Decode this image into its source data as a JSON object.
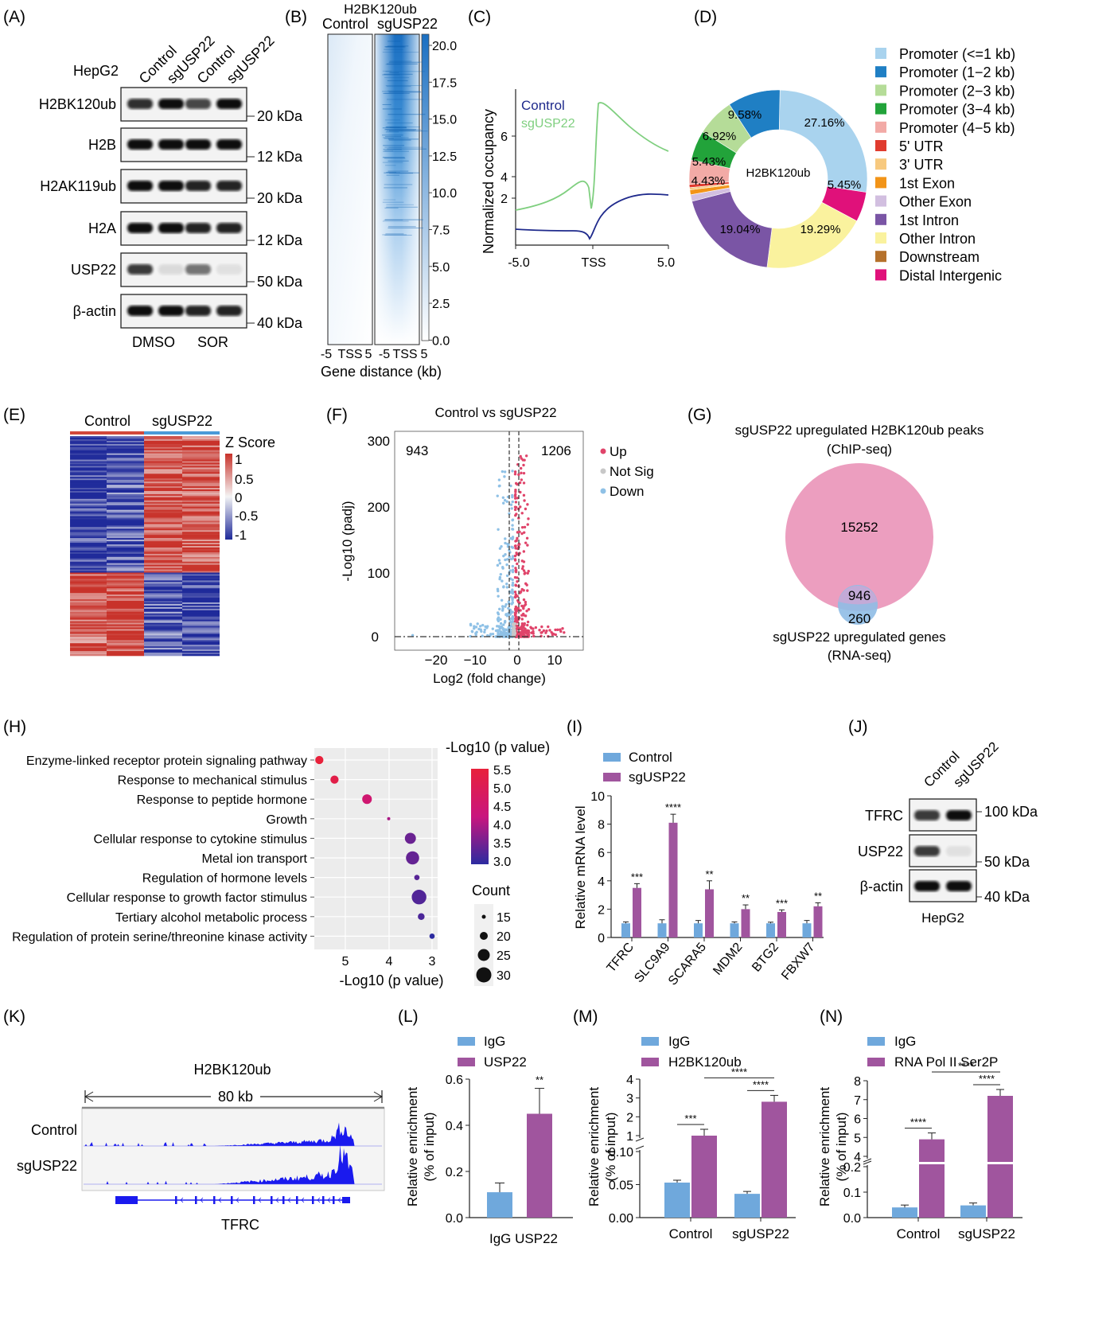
{
  "panels": {
    "A": {
      "label": "(A)",
      "cell_line": "HepG2",
      "lanes": [
        "Control",
        "sgUSP22",
        "Control",
        "sgUSP22"
      ],
      "rows": [
        {
          "name": "H2BK120ub",
          "kda": "20 kDa"
        },
        {
          "name": "H2B",
          "kda": "12 kDa"
        },
        {
          "name": "H2AK119ub",
          "kda": "20 kDa"
        },
        {
          "name": "H2A",
          "kda": "12 kDa"
        },
        {
          "name": "USP22",
          "kda": "50 kDa"
        },
        {
          "name": "β-actin",
          "kda": "40 kDa"
        }
      ],
      "treatments": [
        "DMSO",
        "SOR"
      ]
    },
    "B": {
      "label": "(B)",
      "title": "H2BK120ub",
      "groups": [
        "Control",
        "sgUSP22"
      ],
      "scale_ticks": [
        "20.0",
        "17.5",
        "15.0",
        "12.5",
        "10.0",
        "7.5",
        "5.0",
        "2.5",
        "0.0"
      ],
      "xticks": [
        "-5",
        "TSS",
        "5",
        "-5",
        "TSS",
        "5"
      ],
      "xlabel": "Gene distance (kb)",
      "color": "#1a6fc2"
    },
    "C": {
      "label": "(C)",
      "ylabel": "Normalized occupancy",
      "yticks": [
        "2",
        "4",
        "6"
      ],
      "xticks": [
        "-5.0",
        "TSS",
        "5.0"
      ],
      "legend": [
        {
          "name": "Control",
          "color": "#1f2a8c"
        },
        {
          "name": "sgUSP22",
          "color": "#7fcf7f"
        }
      ]
    },
    "D": {
      "label": "(D)",
      "center": "H2BK120ub",
      "legend": [
        {
          "name": "Promoter (<=1 kb)",
          "color": "#a9d3ee"
        },
        {
          "name": "Promoter (1−2 kb)",
          "color": "#1f7fc4"
        },
        {
          "name": "Promoter (2−3 kb)",
          "color": "#b5dc98"
        },
        {
          "name": "Promoter (3−4 kb)",
          "color": "#22a33a"
        },
        {
          "name": "Promoter (4−5 kb)",
          "color": "#f2aaa6"
        },
        {
          "name": "5' UTR",
          "color": "#e03b2f"
        },
        {
          "name": "3' UTR",
          "color": "#f7c97f"
        },
        {
          "name": "1st Exon",
          "color": "#f29418"
        },
        {
          "name": "Other Exon",
          "color": "#d2bfe0"
        },
        {
          "name": "1st Intron",
          "color": "#7a55a5"
        },
        {
          "name": "Other Intron",
          "color": "#faf29e"
        },
        {
          "name": "Downstream",
          "color": "#b5712b"
        },
        {
          "name": "Distal Intergenic",
          "color": "#e0117a"
        }
      ]
    },
    "E": {
      "label": "(E)",
      "groups": [
        "Control",
        "sgUSP22"
      ],
      "legend_title": "Z Score",
      "legend_ticks": [
        "1",
        "0.5",
        "0",
        "-0.5",
        "-1"
      ]
    },
    "F": {
      "label": "(F)",
      "title": "Control vs sgUSP22",
      "down_count": "943",
      "up_count": "1206",
      "legend": [
        {
          "name": "Up",
          "color": "#e0446a"
        },
        {
          "name": "Not Sig",
          "color": "#c8c8c8"
        },
        {
          "name": "Down",
          "color": "#8fc1e6"
        }
      ],
      "ylabel": "-Log10 (padj)",
      "xlabel": "Log2 (fold change)",
      "yticks": [
        "0",
        "100",
        "200",
        "300"
      ],
      "xticks": [
        "−20",
        "−10",
        "0",
        "10"
      ]
    },
    "G": {
      "label": "(G)",
      "title1": "sgUSP22 upregulated H2BK120ub peaks",
      "title2": "(ChIP-seq)",
      "big": "15252",
      "overlap": "946",
      "small": "260",
      "bottom1": "sgUSP22 upregulated genes",
      "bottom2": "(RNA-seq)"
    },
    "H": {
      "label": "(H)",
      "xlabel": "-Log10 (p value)",
      "xticks": [
        "5",
        "4",
        "3"
      ],
      "color_title": "-Log10 (p value)",
      "color_ticks": [
        "5.5",
        "5.0",
        "4.5",
        "4.0",
        "3.5",
        "3.0"
      ],
      "count_title": "Count",
      "count_ticks": [
        "15",
        "20",
        "25",
        "30"
      ]
    },
    "I": {
      "label": "(I)",
      "legend": [
        {
          "name": "Control",
          "color": "#6fa8dc"
        },
        {
          "name": "sgUSP22",
          "color": "#a0559e"
        }
      ],
      "ylabel": "Relative mRNA level",
      "yticks": [
        "0",
        "2",
        "4",
        "6",
        "8",
        "10"
      ],
      "sig": [
        "***",
        "****",
        "**",
        "**",
        "***",
        "**"
      ]
    },
    "J": {
      "label": "(J)",
      "lanes": [
        "Control",
        "sgUSP22"
      ],
      "rows": [
        {
          "name": "TFRC",
          "kda": "100 kDa"
        },
        {
          "name": "USP22",
          "kda": "50 kDa"
        },
        {
          "name": "β-actin",
          "kda": "40 kDa"
        }
      ],
      "cell_line": "HepG2"
    },
    "K": {
      "label": "(K)",
      "title": "H2BK120ub",
      "span": "80 kb",
      "tracks": [
        "Control",
        "sgUSP22"
      ],
      "gene": "TFRC"
    },
    "L": {
      "label": "(L)",
      "legend": [
        {
          "name": "IgG",
          "color": "#6fa8dc"
        },
        {
          "name": "USP22",
          "color": "#a0559e"
        }
      ],
      "ylabel1": "Relative enrichment",
      "ylabel2": "(% of input)",
      "yticks": [
        "0.0",
        "0.2",
        "0.4",
        "0.6"
      ],
      "sig": "**",
      "xlabel": "IgG USP22"
    },
    "M": {
      "label": "(M)",
      "legend": [
        {
          "name": "IgG",
          "color": "#6fa8dc"
        },
        {
          "name": "H2BK120ub",
          "color": "#a0559e"
        }
      ],
      "ylabel1": "Relative enrichment",
      "ylabel2": "(% of input)",
      "yticks_low": [
        "0.00",
        "0.05",
        "0.10"
      ],
      "yticks_high": [
        "1",
        "2",
        "3",
        "4"
      ],
      "groups": [
        "Control",
        "sgUSP22"
      ],
      "sig": [
        "***",
        "****",
        "****"
      ]
    },
    "N": {
      "label": "(N)",
      "legend": [
        {
          "name": "IgG",
          "color": "#6fa8dc"
        },
        {
          "name": "RNA Pol II Ser2P",
          "color": "#a0559e"
        }
      ],
      "ylabel1": "Relative enrichment",
      "ylabel2": "(% of input)",
      "yticks_low": [
        "0.0",
        "0.1",
        "0.2"
      ],
      "yticks_high": [
        "4",
        "5",
        "6",
        "7",
        "8"
      ],
      "groups": [
        "Control",
        "sgUSP22"
      ],
      "sig": [
        "****",
        "****",
        "****"
      ]
    }
  },
  "chart_data": [
    {
      "type": "pie",
      "panel": "D",
      "categories": [
        "Promoter (<=1 kb)",
        "Distal Intergenic",
        "Other Intron",
        "1st Intron",
        "Other Exon",
        "1st Exon",
        "3' UTR",
        "5' UTR",
        "Promoter (4−5 kb)",
        "Promoter (3−4 kb)",
        "Promoter (2−3 kb)",
        "Promoter (1−2 kb)"
      ],
      "values": [
        27.16,
        5.45,
        19.29,
        19.04,
        1.2,
        0.9,
        0.4,
        0.6,
        4.43,
        5.43,
        6.92,
        9.58
      ],
      "labels": [
        "27.16%",
        "5.45%",
        "19.29%",
        "19.04%",
        "",
        "",
        "",
        "",
        "4.43%",
        "5.43%",
        "6.92%",
        "9.58%"
      ]
    },
    {
      "type": "scatter",
      "panel": "H",
      "categories": [
        "Enzyme-linked receptor protein signaling pathway",
        "Response to mechanical stimulus",
        "Response to peptide hormone",
        "Growth",
        "Cellular response to cytokine stimulus",
        "Metal ion transport",
        "Regulation of hormone levels",
        "Cellular response to growth factor stimulus",
        "Tertiary alcohol metabolic process",
        "Regulation of protein serine/threonine kinase activity"
      ],
      "x": [
        5.6,
        5.25,
        4.5,
        4.0,
        3.5,
        3.45,
        3.35,
        3.3,
        3.25,
        3.0
      ],
      "count": [
        18,
        18,
        20,
        11,
        22,
        25,
        14,
        27,
        16,
        14
      ]
    },
    {
      "type": "bar",
      "panel": "I",
      "categories": [
        "TFRC",
        "SLC9A9",
        "SCARA5",
        "MDM2",
        "BTG2",
        "FBXW7"
      ],
      "series": [
        {
          "name": "Control",
          "values": [
            1.0,
            1.0,
            1.0,
            1.0,
            1.0,
            1.0
          ],
          "err": [
            0.1,
            0.25,
            0.2,
            0.1,
            0.08,
            0.2
          ]
        },
        {
          "name": "sgUSP22",
          "values": [
            3.5,
            8.1,
            3.4,
            2.0,
            1.8,
            2.2
          ],
          "err": [
            0.3,
            0.6,
            0.6,
            0.3,
            0.15,
            0.25
          ]
        }
      ],
      "ylim": [
        0,
        10
      ]
    },
    {
      "type": "bar",
      "panel": "L",
      "categories": [
        "IgG",
        "USP22"
      ],
      "values": [
        0.11,
        0.45
      ],
      "err": [
        0.04,
        0.11
      ],
      "ylim": [
        0,
        0.6
      ]
    },
    {
      "type": "bar",
      "panel": "M",
      "categories": [
        "Control",
        "sgUSP22"
      ],
      "series": [
        {
          "name": "IgG",
          "values": [
            0.053,
            0.036
          ]
        },
        {
          "name": "H2BK120ub",
          "values": [
            1.0,
            2.8
          ]
        }
      ]
    },
    {
      "type": "bar",
      "panel": "N",
      "categories": [
        "Control",
        "sgUSP22"
      ],
      "series": [
        {
          "name": "IgG",
          "values": [
            0.04,
            0.048
          ]
        },
        {
          "name": "RNA Pol II Ser2P",
          "values": [
            4.9,
            7.2
          ]
        }
      ]
    }
  ]
}
